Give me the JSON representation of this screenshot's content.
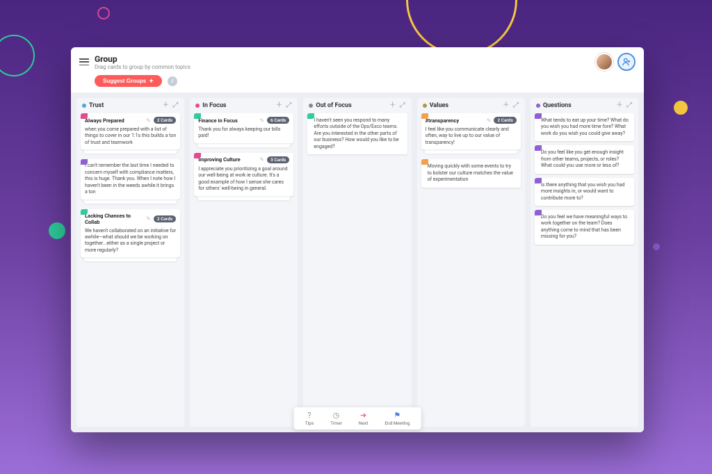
{
  "background": {
    "gradient_top": "#4a2580",
    "gradient_mid": "#6b3fa0",
    "gradient_bottom": "#9b6dd7"
  },
  "header": {
    "title": "Group",
    "subtitle": "Drag cards to group by common topics"
  },
  "toolbar": {
    "suggest_label": "Suggest Groups",
    "suggest_bg": "#ff5a5a"
  },
  "columns": [
    {
      "title": "Trust",
      "dot_color": "#4aa8d8",
      "groups": [
        {
          "name": "Always Prepared",
          "count_label": "2 Cards",
          "tab_color": "#e24a8f",
          "body": "when you come prepared with a list of things to cover in our 1:1s this builds a ton of trust and teamwork"
        },
        {
          "name": null,
          "tab_color": "#8f5fd4",
          "body": "I can't remember the last time I needed to concern myself with compliance matters, this is huge. Thank you. When I note how I haven't been in the weeds awhile it brings a ton"
        },
        {
          "name": "Lacking Chances to Collab",
          "count_label": "2 Cards",
          "tab_color": "#2ecc9a",
          "body": "We haven't collaborated on an initiative for awhile—what should we be working on together...either as a single project or more regularly?"
        }
      ]
    },
    {
      "title": "In Focus",
      "dot_color": "#e24a8f",
      "groups": [
        {
          "name": "Finance in Focus",
          "count_label": "6 Cards",
          "tab_color": "#2ecc9a",
          "body": "Thank you for always keeping our bills paid!"
        },
        {
          "name": "Improving Culture",
          "count_label": "3 Cards",
          "tab_color": "#e24a8f",
          "body": "I appreciate you prioritizing a goal around our well-being at work ie culture. It's a good example of how I sense she cares for others' well-being in general."
        }
      ]
    },
    {
      "title": "Out of Focus",
      "dot_color": "#888888",
      "cards": [
        {
          "tab_color": "#2ecc9a",
          "body": "I haven't seen you respond to many efforts outside of the Ops/Exco teams. Are you interested in the other parts of our business? How would you like to be engaged?"
        }
      ]
    },
    {
      "title": "Values",
      "dot_color": "#a89850",
      "groups": [
        {
          "name": "#transparency",
          "count_label": "2 Cards",
          "tab_color": "#f5a045",
          "body": "I feel like you communicate clearly and often, way to live up to our value of transparency!"
        }
      ],
      "cards": [
        {
          "tab_color": "#f5a045",
          "body": "Moving quickly with some events to try to bolster our culture matches the value of experimentation"
        }
      ]
    },
    {
      "title": "Questions",
      "dot_color": "#8f5fd4",
      "cards": [
        {
          "tab_color": "#8f5fd4",
          "body": "What tends to eat up your time? What do you wish you had more time fore? What work do you wish you could give away?"
        },
        {
          "tab_color": "#8f5fd4",
          "body": "Do you feel like you get enough insight from other teams, projects, or roles? What could you use more or less of?"
        },
        {
          "tab_color": "#8f5fd4",
          "body": "Is there anything that you wish you had more insights in, or would want to contribute more to?"
        },
        {
          "tab_color": "#8f5fd4",
          "body": "Do you feel we have meaningful ways to work together on the team? Does anything come to mind that has been missing for you?"
        }
      ]
    }
  ],
  "footer": {
    "tips": "Tips",
    "timer": "Timer",
    "next": "Next",
    "end": "End Meeting"
  }
}
